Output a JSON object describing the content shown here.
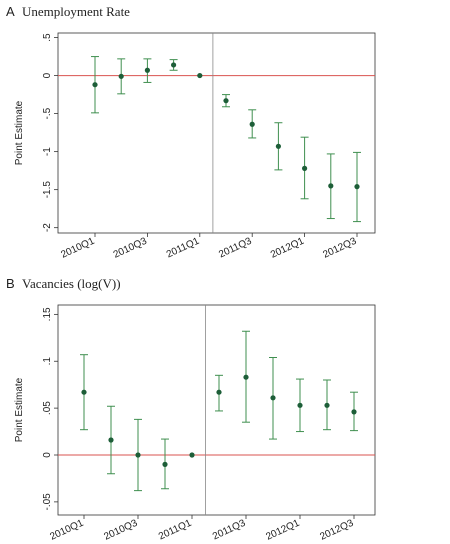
{
  "chart_data": [
    {
      "type": "errorbar",
      "panel": "A",
      "title": "Unemployment Rate",
      "y_label": "Point Estimate",
      "categories": [
        "2010Q1",
        null,
        "2010Q3",
        null,
        "2011Q1",
        null,
        "2011Q3",
        null,
        "2012Q1",
        null,
        "2012Q3"
      ],
      "values": [
        -0.12,
        -0.01,
        0.07,
        0.14,
        0,
        -0.33,
        -0.64,
        -0.93,
        -1.22,
        -1.45,
        -1.46
      ],
      "upper": [
        0.25,
        0.22,
        0.22,
        0.21,
        null,
        -0.25,
        -0.45,
        -0.62,
        -0.81,
        -1.03,
        -1.01
      ],
      "lower": [
        -0.49,
        -0.24,
        -0.09,
        0.07,
        null,
        -0.41,
        -0.82,
        -1.24,
        -1.62,
        -1.88,
        -1.92
      ],
      "color": "#1d5e38",
      "bar_color": "#3f8f4f",
      "ylim": [
        -2.07,
        0.56
      ],
      "yticks": [
        {
          "value": 0.5,
          "label": ".5"
        },
        0,
        {
          "value": -0.5,
          "label": "-.5"
        },
        -1,
        -1.5,
        -2
      ],
      "hline": 0,
      "hline_color": "#d9534f",
      "vline": 4.5
    },
    {
      "type": "errorbar",
      "panel": "B",
      "title": "Vacancies (log(V))",
      "y_label": "Point Estimate",
      "categories": [
        "2010Q1",
        null,
        "2010Q3",
        null,
        "2011Q1",
        null,
        "2011Q3",
        null,
        "2012Q1",
        null,
        "2012Q3"
      ],
      "values": [
        0.067,
        0.016,
        0.0,
        -0.01,
        0,
        0.067,
        0.083,
        0.061,
        0.053,
        0.053,
        0.046
      ],
      "upper": [
        0.107,
        0.052,
        0.038,
        0.017,
        null,
        0.085,
        0.132,
        0.104,
        0.081,
        0.08,
        0.067
      ],
      "lower": [
        0.027,
        -0.02,
        -0.038,
        -0.036,
        null,
        0.047,
        0.035,
        0.017,
        0.025,
        0.027,
        0.026
      ],
      "color": "#1d5e38",
      "bar_color": "#3f8f4f",
      "ylim": [
        -0.064,
        0.16
      ],
      "yticks": [
        {
          "value": 0.15,
          "label": ".15"
        },
        {
          "value": 0.1,
          "label": ".1"
        },
        {
          "value": 0.05,
          "label": ".05"
        },
        0,
        {
          "value": -0.05,
          "label": "-.05"
        }
      ],
      "hline": 0,
      "hline_color": "#d9534f",
      "vline": 4.5
    }
  ]
}
